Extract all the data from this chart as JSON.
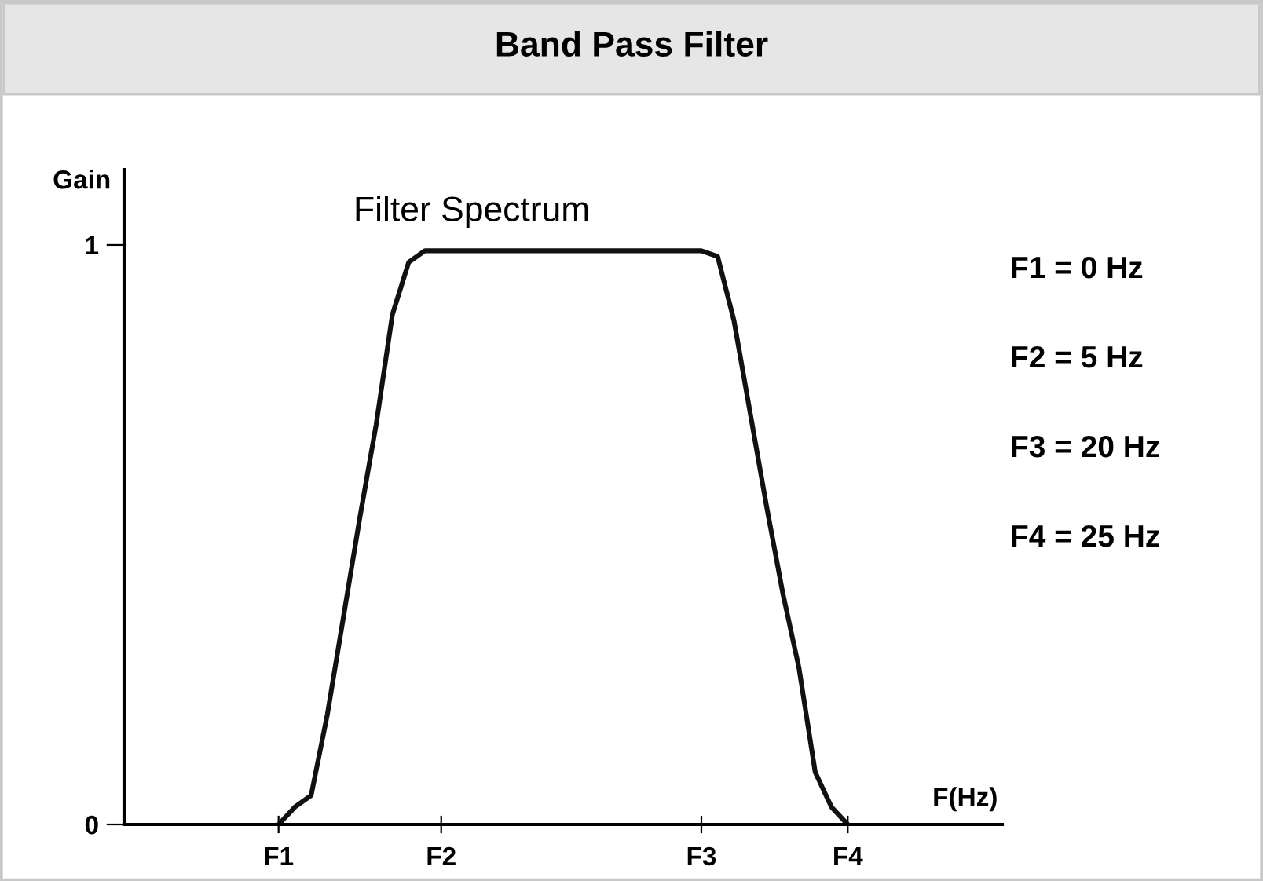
{
  "chart_data": {
    "type": "line",
    "title": "Band Pass Filter",
    "xlabel": "F(Hz)",
    "ylabel": "Gain",
    "annotations": [
      "Filter Spectrum",
      "F1 = 0 Hz",
      "F2 = 5 Hz",
      "F3 = 20 Hz",
      "F4 = 25 Hz"
    ],
    "categories": [
      null,
      null,
      null,
      null,
      null,
      null,
      null,
      null,
      null,
      "F1",
      null,
      null,
      null,
      null,
      null,
      null,
      null,
      null,
      null,
      "F2",
      null,
      null,
      null,
      null,
      null,
      null,
      null,
      null,
      null,
      null,
      null,
      null,
      null,
      null,
      null,
      "F3",
      null,
      null,
      null,
      null,
      null,
      null,
      null,
      null,
      "F4",
      null,
      null,
      null,
      null,
      null,
      null,
      null,
      null,
      null
    ],
    "series": [
      {
        "color": "#111111",
        "values": [
          null,
          null,
          null,
          null,
          null,
          null,
          null,
          null,
          null,
          0,
          0.03,
          0.05,
          0.19,
          0.36,
          0.53,
          0.69,
          0.88,
          0.97,
          0.99,
          0.99,
          0.99,
          0.99,
          0.99,
          0.99,
          0.99,
          0.99,
          0.99,
          0.99,
          0.99,
          0.99,
          0.99,
          0.99,
          0.99,
          0.99,
          0.99,
          0.99,
          0.98,
          0.87,
          0.71,
          0.55,
          0.4,
          0.27,
          0.09,
          0.03,
          0,
          null,
          null,
          null,
          null,
          null,
          null,
          null,
          null,
          null
        ]
      }
    ],
    "ylim": [
      0,
      1.13
    ],
    "yticks": [
      0,
      1
    ],
    "grid": false,
    "legend": false,
    "marker": "none",
    "line_style": "solid"
  }
}
